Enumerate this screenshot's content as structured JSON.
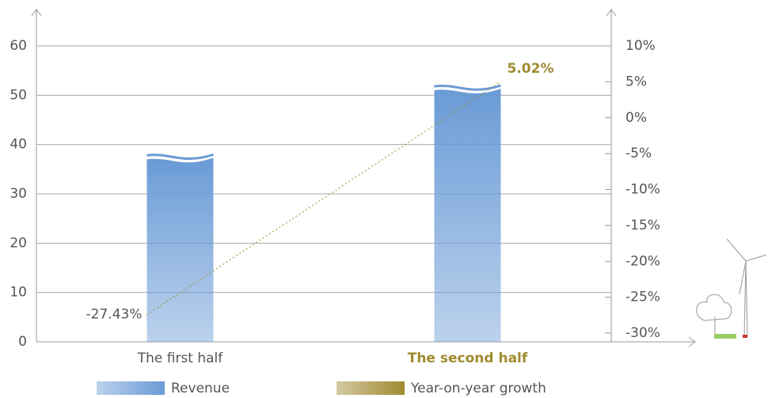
{
  "chart_data": {
    "type": "bar-line",
    "categories": [
      "The first half",
      "The second half"
    ],
    "highlight_category": 1,
    "series": [
      {
        "name": "Revenue",
        "type": "bar",
        "color": "#6a9bd6",
        "values": [
          37,
          51
        ]
      },
      {
        "name": "Year-on-year growth",
        "type": "line",
        "axis": "y2",
        "color": "#a08a30",
        "values": [
          -27.43,
          5.02
        ],
        "value_labels": [
          "-27.43%",
          "5.02%"
        ]
      }
    ],
    "ylim": [
      0,
      60
    ],
    "yticks": [
      0,
      10,
      20,
      30,
      40,
      50,
      60
    ],
    "y2lim": [
      -30,
      10
    ],
    "y2ticks": [
      {
        "value": -30,
        "label": "-30%"
      },
      {
        "value": -25,
        "label": "-25%"
      },
      {
        "value": -20,
        "label": "-20%"
      },
      {
        "value": -15,
        "label": "-15%"
      },
      {
        "value": -10,
        "label": "-10%"
      },
      {
        "value": -5,
        "label": "-5%"
      },
      {
        "value": 0,
        "label": "0%"
      },
      {
        "value": 5,
        "label": "5%"
      },
      {
        "value": 10,
        "label": "10%"
      }
    ],
    "grid": true
  }
}
